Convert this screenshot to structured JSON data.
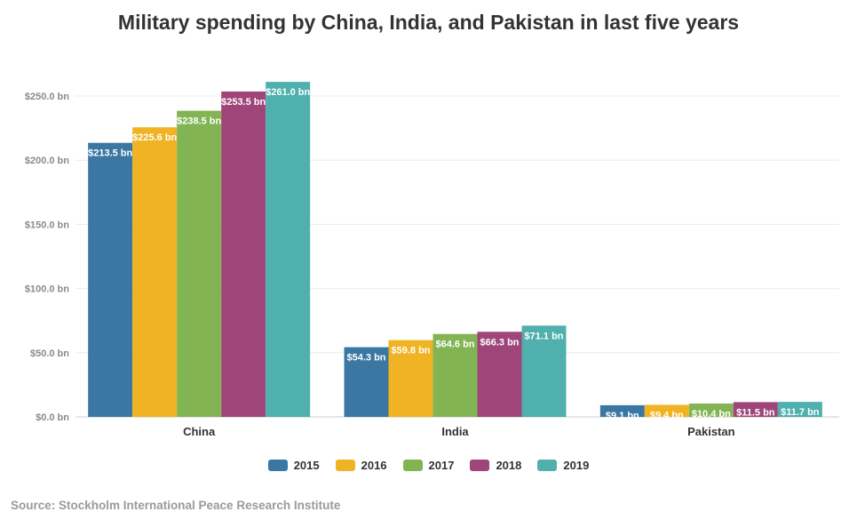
{
  "title": "Military spending by China, India, and Pakistan in last five years",
  "source": "Source: Stockholm International Peace Research Institute",
  "chart_data": {
    "type": "bar",
    "title": "Military spending by China, India, and Pakistan in last five years",
    "xlabel": "",
    "ylabel": "",
    "ylim": [
      0,
      260
    ],
    "yticks": [
      0,
      50,
      100,
      150,
      200,
      250
    ],
    "ytick_labels": [
      "$0.0 bn",
      "$50.0 bn",
      "$100.0 bn",
      "$150.0 bn",
      "$200.0 bn",
      "$250.0 bn"
    ],
    "categories": [
      "China",
      "India",
      "Pakistan"
    ],
    "grid": true,
    "legend_position": "bottom",
    "series": [
      {
        "name": "2015",
        "color": "#3a77a3",
        "values": [
          213.5,
          54.3,
          9.1
        ],
        "labels": [
          "$213.5 bn",
          "$54.3 bn",
          "$9.1 bn"
        ]
      },
      {
        "name": "2016",
        "color": "#f0b323",
        "values": [
          225.6,
          59.8,
          9.4
        ],
        "labels": [
          "$225.6 bn",
          "$59.8 bn",
          "$9.4 bn"
        ]
      },
      {
        "name": "2017",
        "color": "#82b454",
        "values": [
          238.5,
          64.6,
          10.4
        ],
        "labels": [
          "$238.5 bn",
          "$64.6 bn",
          "$10.4 bn"
        ]
      },
      {
        "name": "2018",
        "color": "#9e4579",
        "values": [
          253.5,
          66.3,
          11.5
        ],
        "labels": [
          "$253.5 bn",
          "$66.3 bn",
          "$11.5 bn"
        ]
      },
      {
        "name": "2019",
        "color": "#4fb0ae",
        "values": [
          261.0,
          71.1,
          11.7
        ],
        "labels": [
          "$261.0 bn",
          "$71.1 bn",
          "$11.7 bn"
        ]
      }
    ]
  }
}
